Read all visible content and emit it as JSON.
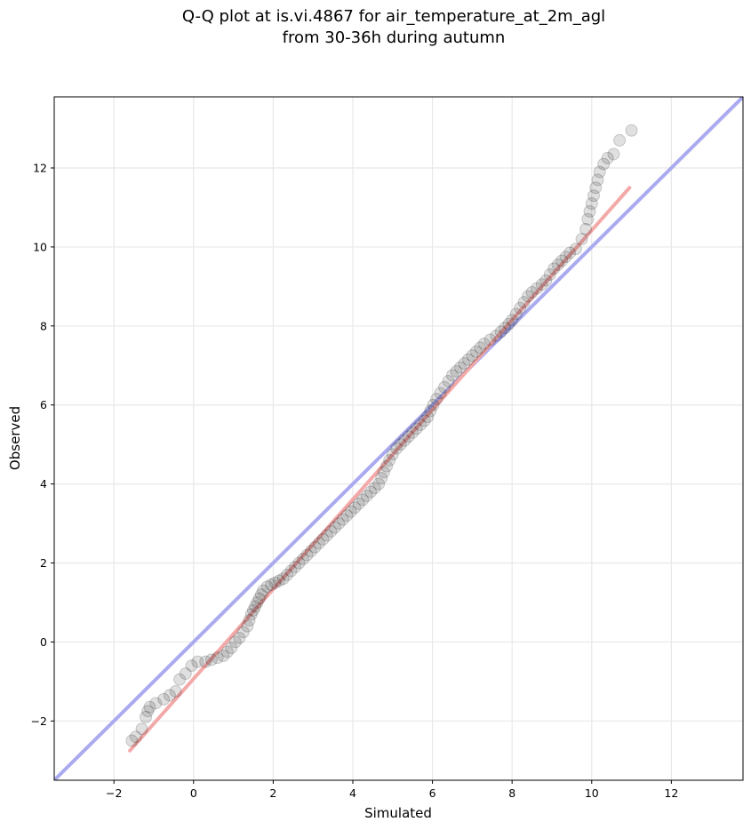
{
  "chart_data": {
    "type": "scatter",
    "title": "Q-Q plot at is.vi.4867 for air_temperature_at_2m_agl",
    "subtitle": "from 30-36h during autumn",
    "xlabel": "Simulated",
    "ylabel": "Observed",
    "xlim": [
      -3.5,
      13.8
    ],
    "ylim": [
      -3.5,
      13.8
    ],
    "xticks": [
      -2,
      0,
      2,
      4,
      6,
      8,
      10,
      12
    ],
    "yticks": [
      -2,
      0,
      2,
      4,
      6,
      8,
      10,
      12
    ],
    "xtick_labels": [
      "−2",
      "0",
      "2",
      "4",
      "6",
      "8",
      "10",
      "12"
    ],
    "ytick_labels": [
      "−2",
      "0",
      "2",
      "4",
      "6",
      "8",
      "10",
      "12"
    ],
    "grid": true,
    "points": [
      [
        -1.55,
        -2.5
      ],
      [
        -1.45,
        -2.4
      ],
      [
        -1.3,
        -2.2
      ],
      [
        -1.2,
        -1.9
      ],
      [
        -1.15,
        -1.75
      ],
      [
        -1.1,
        -1.65
      ],
      [
        -0.95,
        -1.55
      ],
      [
        -0.75,
        -1.45
      ],
      [
        -0.6,
        -1.35
      ],
      [
        -0.45,
        -1.25
      ],
      [
        -0.35,
        -0.95
      ],
      [
        -0.2,
        -0.8
      ],
      [
        -0.05,
        -0.6
      ],
      [
        0.1,
        -0.5
      ],
      [
        0.3,
        -0.5
      ],
      [
        0.45,
        -0.45
      ],
      [
        0.6,
        -0.4
      ],
      [
        0.75,
        -0.35
      ],
      [
        0.85,
        -0.25
      ],
      [
        0.95,
        -0.15
      ],
      [
        1.05,
        0.0
      ],
      [
        1.15,
        0.1
      ],
      [
        1.25,
        0.25
      ],
      [
        1.35,
        0.4
      ],
      [
        1.4,
        0.55
      ],
      [
        1.45,
        0.7
      ],
      [
        1.5,
        0.8
      ],
      [
        1.55,
        0.9
      ],
      [
        1.6,
        1.0
      ],
      [
        1.65,
        1.1
      ],
      [
        1.7,
        1.2
      ],
      [
        1.75,
        1.3
      ],
      [
        1.85,
        1.4
      ],
      [
        1.95,
        1.45
      ],
      [
        2.05,
        1.5
      ],
      [
        2.15,
        1.55
      ],
      [
        2.25,
        1.6
      ],
      [
        2.35,
        1.7
      ],
      [
        2.45,
        1.8
      ],
      [
        2.55,
        1.9
      ],
      [
        2.65,
        2.0
      ],
      [
        2.75,
        2.1
      ],
      [
        2.85,
        2.2
      ],
      [
        2.95,
        2.3
      ],
      [
        3.05,
        2.4
      ],
      [
        3.15,
        2.5
      ],
      [
        3.25,
        2.6
      ],
      [
        3.35,
        2.7
      ],
      [
        3.45,
        2.8
      ],
      [
        3.55,
        2.9
      ],
      [
        3.65,
        3.0
      ],
      [
        3.75,
        3.1
      ],
      [
        3.85,
        3.2
      ],
      [
        3.95,
        3.3
      ],
      [
        4.05,
        3.4
      ],
      [
        4.15,
        3.5
      ],
      [
        4.25,
        3.6
      ],
      [
        4.35,
        3.7
      ],
      [
        4.45,
        3.8
      ],
      [
        4.55,
        3.9
      ],
      [
        4.65,
        4.0
      ],
      [
        4.72,
        4.15
      ],
      [
        4.78,
        4.3
      ],
      [
        4.85,
        4.45
      ],
      [
        4.92,
        4.6
      ],
      [
        5.0,
        4.75
      ],
      [
        5.1,
        4.9
      ],
      [
        5.2,
        5.0
      ],
      [
        5.3,
        5.1
      ],
      [
        5.4,
        5.2
      ],
      [
        5.5,
        5.3
      ],
      [
        5.6,
        5.4
      ],
      [
        5.7,
        5.5
      ],
      [
        5.8,
        5.6
      ],
      [
        5.88,
        5.7
      ],
      [
        5.95,
        5.85
      ],
      [
        6.02,
        6.0
      ],
      [
        6.1,
        6.15
      ],
      [
        6.2,
        6.3
      ],
      [
        6.3,
        6.45
      ],
      [
        6.4,
        6.6
      ],
      [
        6.5,
        6.75
      ],
      [
        6.6,
        6.85
      ],
      [
        6.7,
        6.95
      ],
      [
        6.8,
        7.05
      ],
      [
        6.9,
        7.15
      ],
      [
        7.0,
        7.25
      ],
      [
        7.1,
        7.35
      ],
      [
        7.2,
        7.45
      ],
      [
        7.3,
        7.55
      ],
      [
        7.45,
        7.65
      ],
      [
        7.6,
        7.75
      ],
      [
        7.72,
        7.85
      ],
      [
        7.82,
        7.95
      ],
      [
        7.92,
        8.05
      ],
      [
        8.0,
        8.15
      ],
      [
        8.1,
        8.3
      ],
      [
        8.2,
        8.45
      ],
      [
        8.3,
        8.6
      ],
      [
        8.4,
        8.75
      ],
      [
        8.5,
        8.85
      ],
      [
        8.62,
        8.95
      ],
      [
        8.75,
        9.05
      ],
      [
        8.85,
        9.15
      ],
      [
        8.95,
        9.3
      ],
      [
        9.05,
        9.45
      ],
      [
        9.15,
        9.55
      ],
      [
        9.25,
        9.65
      ],
      [
        9.35,
        9.75
      ],
      [
        9.45,
        9.85
      ],
      [
        9.6,
        9.95
      ],
      [
        9.75,
        10.2
      ],
      [
        9.85,
        10.45
      ],
      [
        9.9,
        10.7
      ],
      [
        9.95,
        10.9
      ],
      [
        10.0,
        11.1
      ],
      [
        10.05,
        11.3
      ],
      [
        10.1,
        11.5
      ],
      [
        10.15,
        11.7
      ],
      [
        10.2,
        11.9
      ],
      [
        10.3,
        12.1
      ],
      [
        10.4,
        12.25
      ],
      [
        10.55,
        12.35
      ],
      [
        10.7,
        12.7
      ],
      [
        11.0,
        12.95
      ]
    ],
    "reference_line": {
      "color": "#aaaaf0",
      "from": [
        -3.5,
        -3.5
      ],
      "to": [
        13.8,
        13.8
      ]
    },
    "fit_line": {
      "color": "#f4a9a9",
      "from": [
        -1.6,
        -2.75
      ],
      "to": [
        10.95,
        11.5
      ]
    },
    "colors": {
      "points": "#000000",
      "reference_line": "#aaaaf0",
      "fit_line": "#f4a9a9",
      "grid": "#e8e8e8"
    }
  }
}
